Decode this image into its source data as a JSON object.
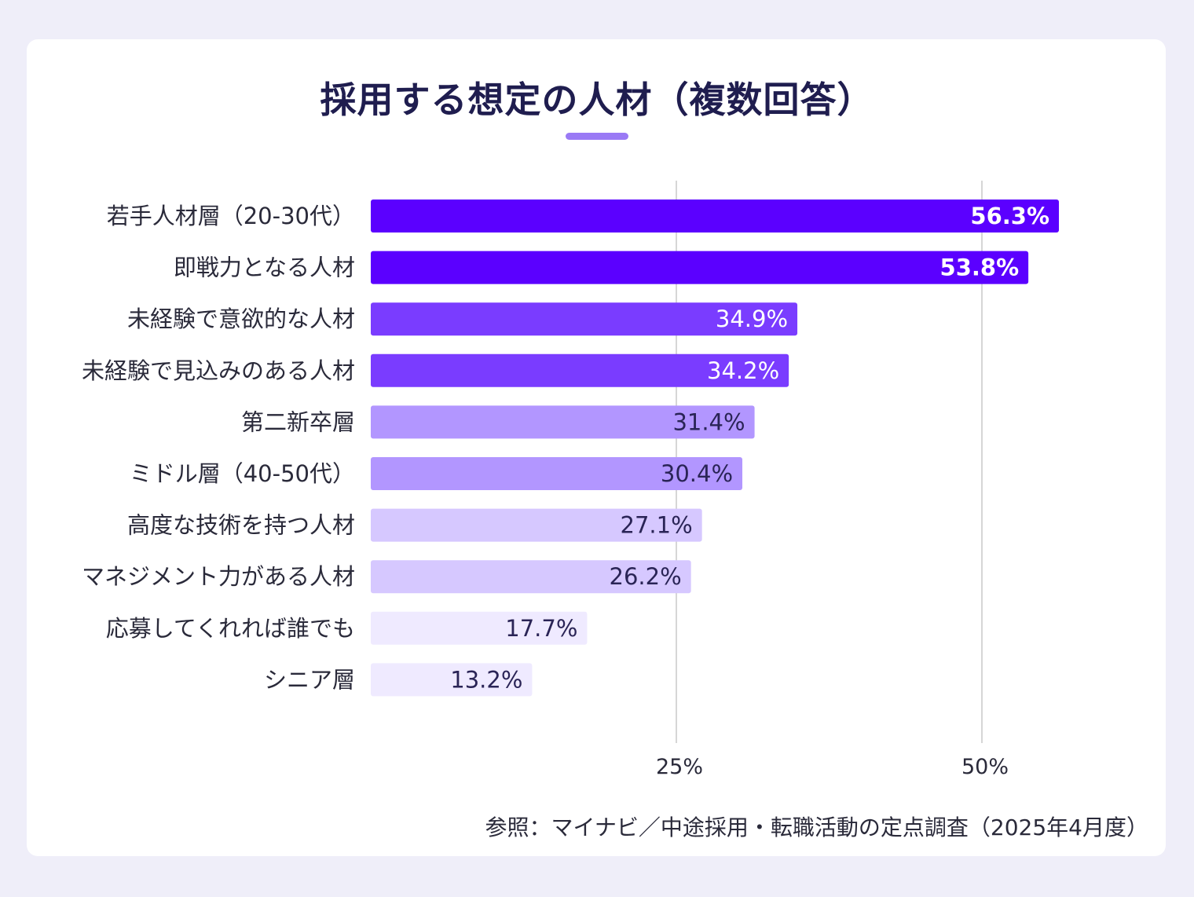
{
  "title": "採用する想定の人材（複数回答）",
  "source": "参照：マイナビ／中途採用・転職活動の定点調査（2025年4月度）",
  "colors": {
    "page_background": "#efeef9",
    "card_background": "#ffffff",
    "title_text": "#1f1d4f",
    "title_accent": "#9a7af5",
    "gridline": "#d6d6d6",
    "label_text": "#2a2a3a"
  },
  "chart_data": {
    "type": "bar",
    "orientation": "horizontal",
    "title": "採用する想定の人材（複数回答）",
    "xlim": [
      0,
      60
    ],
    "x_ticks": [
      {
        "value": 25,
        "label": "25%"
      },
      {
        "value": 50,
        "label": "50%"
      }
    ],
    "grid": true,
    "categories": [
      "若手人材層（20-30代）",
      "即戦力となる人材",
      "未経験で意欲的な人材",
      "未経験で見込みのある人材",
      "第二新卒層",
      "ミドル層（40-50代）",
      "高度な技術を持つ人材",
      "マネジメント力がある人材",
      "応募してくれれば誰でも",
      "シニア層"
    ],
    "values": [
      56.3,
      53.8,
      34.9,
      34.2,
      31.4,
      30.4,
      27.1,
      26.2,
      17.7,
      13.2
    ],
    "value_labels": [
      "56.3%",
      "53.8%",
      "34.9%",
      "34.2%",
      "31.4%",
      "30.4%",
      "27.1%",
      "26.2%",
      "17.7%",
      "13.2%"
    ],
    "bar_colors": [
      "#5b00ff",
      "#5b00ff",
      "#7a3cff",
      "#7a3cff",
      "#b296ff",
      "#b296ff",
      "#d6c8ff",
      "#d6c8ff",
      "#efeaff",
      "#efeaff"
    ],
    "value_label_colors": [
      "#ffffff",
      "#ffffff",
      "#ffffff",
      "#ffffff",
      "#2a2456",
      "#2a2456",
      "#2a2456",
      "#2a2456",
      "#2a2456",
      "#2a2456"
    ],
    "bold_value_labels": [
      true,
      true,
      false,
      false,
      false,
      false,
      false,
      false,
      false,
      false
    ]
  }
}
